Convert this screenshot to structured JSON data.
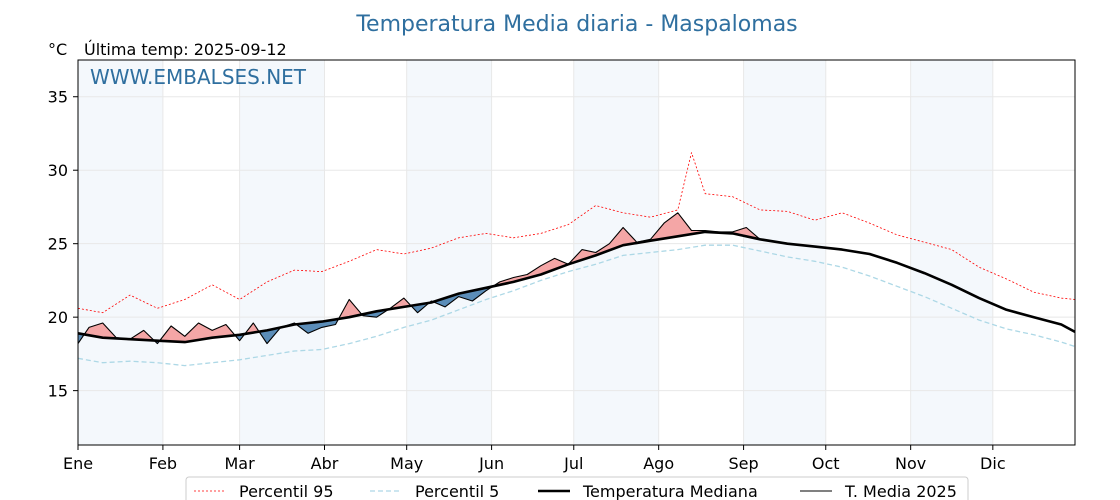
{
  "chart_data": {
    "type": "line",
    "title": "Temperatura Media diaria - Maspalomas",
    "unit_label": "°C",
    "last_temp_label": "Última temp: 2025-09-12",
    "watermark": "WWW.EMBALSES.NET",
    "xlabel": "",
    "ylabel": "",
    "ylim": [
      11.3,
      37.5
    ],
    "yticks": [
      15,
      20,
      25,
      30,
      35
    ],
    "months": [
      "Ene",
      "Feb",
      "Mar",
      "Abr",
      "May",
      "Jun",
      "Jul",
      "Ago",
      "Sep",
      "Oct",
      "Nov",
      "Dic"
    ],
    "month_start_day": [
      1,
      32,
      60,
      91,
      121,
      152,
      182,
      213,
      244,
      274,
      305,
      335
    ],
    "days_in_year": 365,
    "grid": true,
    "legend_position": "bottom-center",
    "colors": {
      "p95": "#ff0000",
      "p5": "#add8e6",
      "median": "#000000",
      "current": "#000000",
      "above_fill": "#f4a6a6",
      "below_fill": "#5b8db8",
      "title": "#2f6f9f",
      "band": "#f4f8fc",
      "grid": "#e8e8e8"
    },
    "series": [
      {
        "name": "Percentil 95",
        "style": "dotted-thin",
        "points": [
          [
            1,
            20.6
          ],
          [
            10,
            20.3
          ],
          [
            20,
            21.5
          ],
          [
            30,
            20.6
          ],
          [
            40,
            21.2
          ],
          [
            50,
            22.2
          ],
          [
            60,
            21.2
          ],
          [
            70,
            22.4
          ],
          [
            80,
            23.2
          ],
          [
            90,
            23.1
          ],
          [
            100,
            23.8
          ],
          [
            110,
            24.6
          ],
          [
            120,
            24.3
          ],
          [
            130,
            24.7
          ],
          [
            140,
            25.4
          ],
          [
            150,
            25.7
          ],
          [
            160,
            25.4
          ],
          [
            170,
            25.7
          ],
          [
            180,
            26.3
          ],
          [
            190,
            27.6
          ],
          [
            200,
            27.1
          ],
          [
            210,
            26.8
          ],
          [
            220,
            27.3
          ],
          [
            225,
            31.2
          ],
          [
            230,
            28.4
          ],
          [
            240,
            28.2
          ],
          [
            250,
            27.3
          ],
          [
            260,
            27.2
          ],
          [
            270,
            26.6
          ],
          [
            280,
            27.1
          ],
          [
            290,
            26.4
          ],
          [
            300,
            25.6
          ],
          [
            310,
            25.1
          ],
          [
            320,
            24.6
          ],
          [
            330,
            23.4
          ],
          [
            340,
            22.6
          ],
          [
            350,
            21.7
          ],
          [
            360,
            21.3
          ],
          [
            365,
            21.2
          ]
        ]
      },
      {
        "name": "Percentil 5",
        "style": "dashed",
        "points": [
          [
            1,
            17.2
          ],
          [
            10,
            16.9
          ],
          [
            20,
            17.0
          ],
          [
            30,
            16.9
          ],
          [
            40,
            16.7
          ],
          [
            50,
            16.9
          ],
          [
            60,
            17.1
          ],
          [
            70,
            17.4
          ],
          [
            80,
            17.7
          ],
          [
            90,
            17.8
          ],
          [
            100,
            18.2
          ],
          [
            110,
            18.7
          ],
          [
            120,
            19.3
          ],
          [
            130,
            19.8
          ],
          [
            140,
            20.5
          ],
          [
            150,
            21.2
          ],
          [
            160,
            21.8
          ],
          [
            170,
            22.5
          ],
          [
            180,
            23.1
          ],
          [
            190,
            23.6
          ],
          [
            200,
            24.2
          ],
          [
            210,
            24.4
          ],
          [
            220,
            24.6
          ],
          [
            230,
            24.9
          ],
          [
            240,
            24.9
          ],
          [
            250,
            24.5
          ],
          [
            260,
            24.1
          ],
          [
            270,
            23.8
          ],
          [
            280,
            23.4
          ],
          [
            290,
            22.8
          ],
          [
            300,
            22.1
          ],
          [
            310,
            21.4
          ],
          [
            320,
            20.6
          ],
          [
            330,
            19.8
          ],
          [
            340,
            19.2
          ],
          [
            350,
            18.8
          ],
          [
            360,
            18.3
          ],
          [
            365,
            18.0
          ]
        ]
      },
      {
        "name": "Temperatura Mediana",
        "style": "solid-thick",
        "points": [
          [
            1,
            18.9
          ],
          [
            10,
            18.6
          ],
          [
            20,
            18.5
          ],
          [
            30,
            18.4
          ],
          [
            40,
            18.3
          ],
          [
            50,
            18.6
          ],
          [
            60,
            18.8
          ],
          [
            70,
            19.1
          ],
          [
            80,
            19.5
          ],
          [
            90,
            19.7
          ],
          [
            100,
            20.0
          ],
          [
            110,
            20.4
          ],
          [
            120,
            20.7
          ],
          [
            130,
            21.0
          ],
          [
            140,
            21.6
          ],
          [
            150,
            22.0
          ],
          [
            160,
            22.4
          ],
          [
            170,
            22.9
          ],
          [
            180,
            23.6
          ],
          [
            190,
            24.2
          ],
          [
            200,
            24.9
          ],
          [
            210,
            25.2
          ],
          [
            220,
            25.5
          ],
          [
            230,
            25.8
          ],
          [
            240,
            25.7
          ],
          [
            250,
            25.3
          ],
          [
            260,
            25.0
          ],
          [
            270,
            24.8
          ],
          [
            280,
            24.6
          ],
          [
            290,
            24.3
          ],
          [
            300,
            23.7
          ],
          [
            310,
            23.0
          ],
          [
            320,
            22.2
          ],
          [
            330,
            21.3
          ],
          [
            340,
            20.5
          ],
          [
            350,
            20.0
          ],
          [
            360,
            19.5
          ],
          [
            365,
            19.0
          ]
        ]
      },
      {
        "name": "T. Media 2025",
        "style": "solid-thin",
        "points": [
          [
            1,
            18.2
          ],
          [
            5,
            19.3
          ],
          [
            10,
            19.6
          ],
          [
            15,
            18.6
          ],
          [
            20,
            18.5
          ],
          [
            25,
            19.1
          ],
          [
            30,
            18.2
          ],
          [
            35,
            19.4
          ],
          [
            40,
            18.7
          ],
          [
            45,
            19.6
          ],
          [
            50,
            19.1
          ],
          [
            55,
            19.5
          ],
          [
            60,
            18.4
          ],
          [
            65,
            19.6
          ],
          [
            70,
            18.2
          ],
          [
            75,
            19.3
          ],
          [
            80,
            19.6
          ],
          [
            85,
            18.9
          ],
          [
            90,
            19.3
          ],
          [
            95,
            19.5
          ],
          [
            100,
            21.2
          ],
          [
            105,
            20.1
          ],
          [
            110,
            20.0
          ],
          [
            115,
            20.6
          ],
          [
            120,
            21.3
          ],
          [
            125,
            20.3
          ],
          [
            130,
            21.1
          ],
          [
            135,
            20.7
          ],
          [
            140,
            21.4
          ],
          [
            145,
            21.1
          ],
          [
            150,
            21.8
          ],
          [
            155,
            22.4
          ],
          [
            160,
            22.7
          ],
          [
            165,
            22.9
          ],
          [
            170,
            23.5
          ],
          [
            175,
            24.0
          ],
          [
            180,
            23.6
          ],
          [
            185,
            24.6
          ],
          [
            190,
            24.4
          ],
          [
            195,
            25.0
          ],
          [
            200,
            26.1
          ],
          [
            205,
            25.1
          ],
          [
            210,
            25.3
          ],
          [
            215,
            26.4
          ],
          [
            220,
            27.1
          ],
          [
            225,
            25.9
          ],
          [
            230,
            25.9
          ],
          [
            235,
            25.8
          ],
          [
            240,
            25.8
          ],
          [
            245,
            26.1
          ],
          [
            250,
            25.3
          ]
        ]
      }
    ]
  }
}
